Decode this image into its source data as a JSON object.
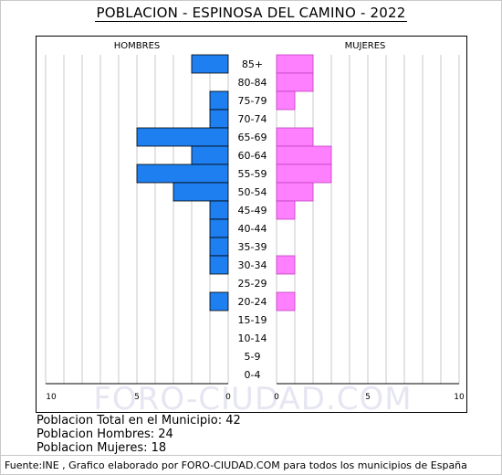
{
  "title": "POBLACION - ESPINOSA DEL CAMINO - 2022",
  "watermark": "FORO-CIUDAD.COM",
  "info": {
    "total": "Poblacion Total en el Municipio: 42",
    "men": "Poblacion Hombres: 24",
    "women": "Poblacion Mujeres: 18"
  },
  "footer": "Fuente:INE , Grafico elaborado por FORO-CIUDAD.COM para todos los municipios de España",
  "colors": {
    "men": "#1e7ff0",
    "women": "#ff80ff",
    "grid": "#c8c8c8"
  },
  "chart_data": {
    "type": "bar",
    "orientation": "horizontal-pyramid",
    "categories": [
      "85+",
      "80-84",
      "75-79",
      "70-74",
      "65-69",
      "60-64",
      "55-59",
      "50-54",
      "45-49",
      "40-44",
      "35-39",
      "30-34",
      "25-29",
      "20-24",
      "15-19",
      "10-14",
      "5-9",
      "0-4"
    ],
    "series": [
      {
        "name": "HOMBRES",
        "values": [
          2,
          0,
          1,
          1,
          5,
          2,
          5,
          3,
          1,
          1,
          1,
          1,
          0,
          1,
          0,
          0,
          0,
          0
        ]
      },
      {
        "name": "MUJERES",
        "values": [
          2,
          2,
          1,
          0,
          2,
          3,
          3,
          2,
          1,
          0,
          0,
          1,
          0,
          1,
          0,
          0,
          0,
          0
        ]
      }
    ],
    "xlim": [
      0,
      10
    ],
    "xticks": [
      "10",
      "5",
      "0",
      "0",
      "5",
      "10"
    ],
    "grid": true
  }
}
